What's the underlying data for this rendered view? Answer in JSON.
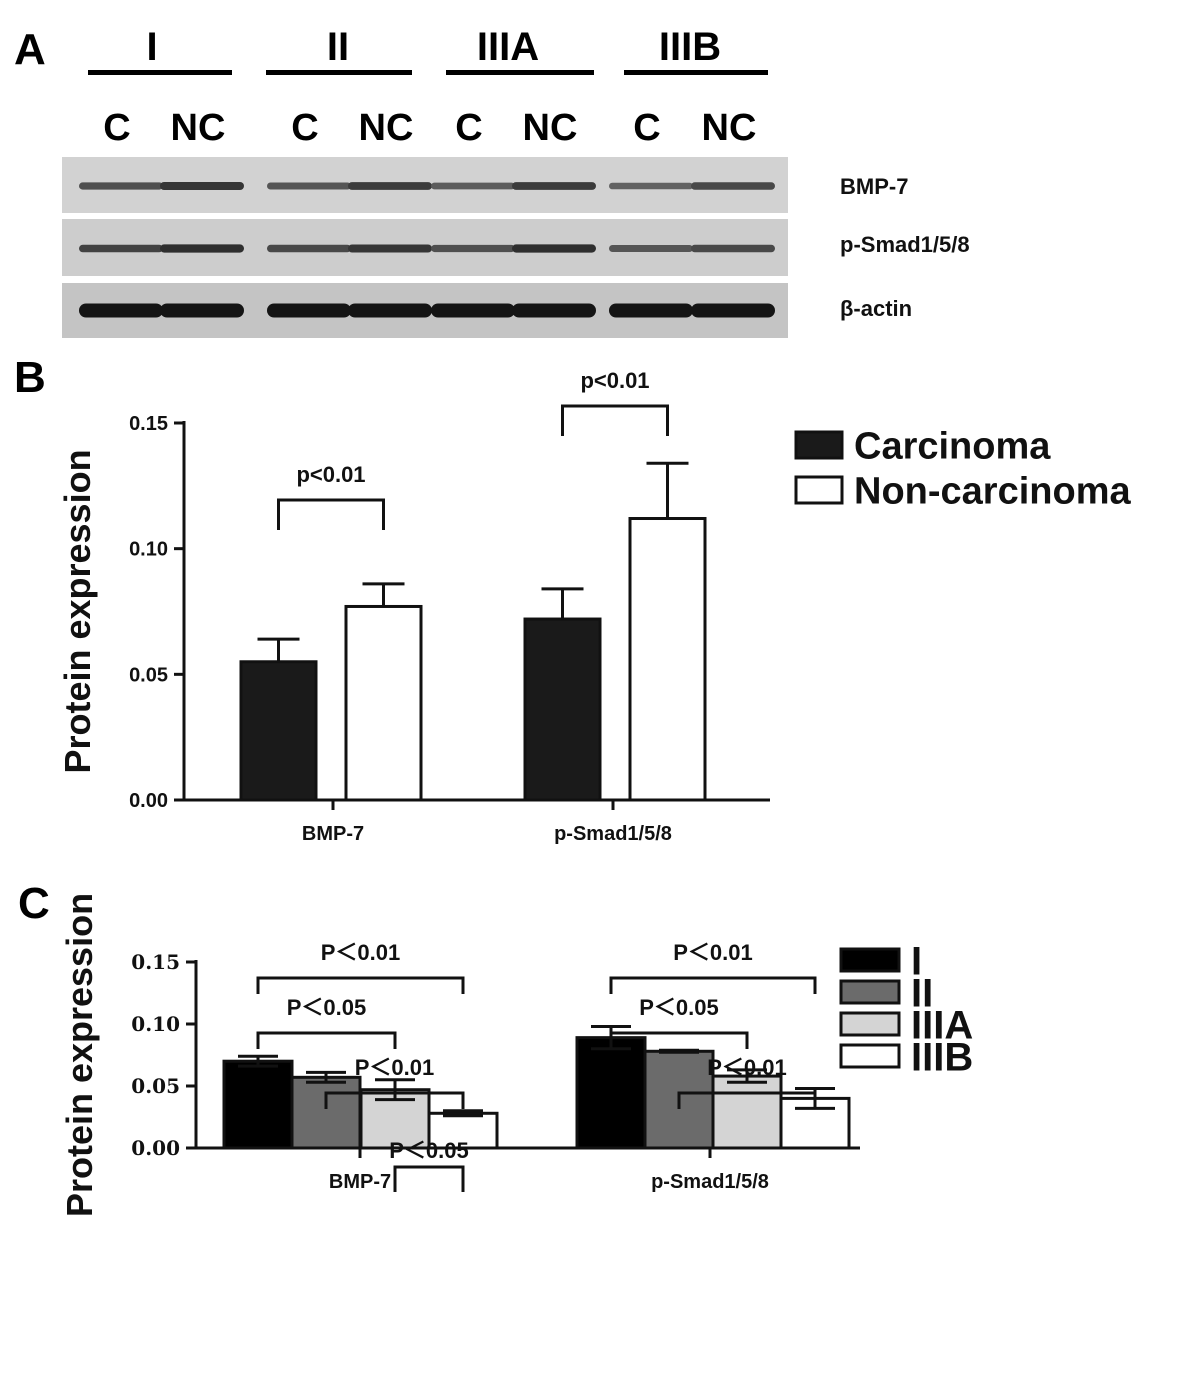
{
  "panels": {
    "a": {
      "letter": "A"
    },
    "b": {
      "letter": "B"
    },
    "c": {
      "letter": "C"
    }
  },
  "blot": {
    "stages": [
      "I",
      "II",
      "IIIA",
      "IIIB"
    ],
    "lanes": [
      "C",
      "NC",
      "C",
      "NC",
      "C",
      "NC",
      "C",
      "NC"
    ],
    "rows": [
      {
        "label": "BMP-7",
        "bg": "#d2d2d2",
        "intensity": [
          0.55,
          0.75,
          0.5,
          0.7,
          0.45,
          0.7,
          0.4,
          0.6
        ]
      },
      {
        "label": "p-Smad1/5/8",
        "bg": "#cdcdcd",
        "intensity": [
          0.65,
          0.8,
          0.6,
          0.75,
          0.55,
          0.8,
          0.5,
          0.6
        ]
      },
      {
        "label": "β-actin",
        "bg": "#c4c4c4",
        "intensity": [
          1,
          1,
          1,
          1,
          1,
          1,
          1,
          1
        ]
      }
    ]
  },
  "chart_data": [
    {
      "type": "bar",
      "title": "",
      "xlabel": "",
      "ylabel": "Protein expression",
      "ylim": [
        0,
        0.15
      ],
      "yticks": [
        "0.00",
        "0.05",
        "0.10",
        "0.15"
      ],
      "categories": [
        "BMP-7",
        "p-Smad1/5/8"
      ],
      "series": [
        {
          "name": "Carcinoma",
          "color": "#1a1a1a",
          "values": [
            0.055,
            0.072
          ],
          "errors": [
            0.009,
            0.012
          ]
        },
        {
          "name": "Non-carcinoma",
          "color": "#ffffff",
          "values": [
            0.077,
            0.112
          ],
          "errors": [
            0.009,
            0.022
          ]
        }
      ],
      "significance": [
        {
          "label": "p<0.01",
          "from": [
            0,
            0
          ],
          "to": [
            0,
            1
          ]
        },
        {
          "label": "p<0.01",
          "from": [
            1,
            0
          ],
          "to": [
            1,
            1
          ]
        }
      ],
      "legend": "right"
    },
    {
      "type": "bar",
      "title": "",
      "xlabel": "",
      "ylabel": "Protein expression",
      "ylim": [
        0,
        0.15
      ],
      "yticks": [
        "0.00",
        "0.05",
        "0.10",
        "0.15"
      ],
      "categories": [
        "BMP-7",
        "p-Smad1/5/8"
      ],
      "series": [
        {
          "name": "I",
          "color": "#000000",
          "values": [
            0.07,
            0.089
          ],
          "errors": [
            0.004,
            0.009
          ]
        },
        {
          "name": "II",
          "color": "#6b6b6b",
          "values": [
            0.057,
            0.078
          ],
          "errors": [
            0.004,
            0.0008
          ]
        },
        {
          "name": "IIIA",
          "color": "#d4d4d4",
          "values": [
            0.047,
            0.058
          ],
          "errors": [
            0.008,
            0.005
          ]
        },
        {
          "name": "IIIB",
          "color": "#ffffff",
          "values": [
            0.028,
            0.04
          ],
          "errors": [
            0.002,
            0.008
          ]
        }
      ],
      "significance": [
        {
          "label": "P＜0.01",
          "from": [
            0,
            0
          ],
          "to": [
            0,
            3
          ]
        },
        {
          "label": "P＜0.05",
          "from": [
            0,
            0
          ],
          "to": [
            0,
            2
          ]
        },
        {
          "label": "P＜0.01",
          "from": [
            0,
            1
          ],
          "to": [
            0,
            3
          ]
        },
        {
          "label": "P＜0.05",
          "from": [
            0,
            2
          ],
          "to": [
            0,
            3
          ]
        },
        {
          "label": "P＜0.01",
          "from": [
            1,
            0
          ],
          "to": [
            1,
            3
          ]
        },
        {
          "label": "P＜0.05",
          "from": [
            1,
            0
          ],
          "to": [
            1,
            2
          ]
        },
        {
          "label": "P＜0.01",
          "from": [
            1,
            1
          ],
          "to": [
            1,
            3
          ]
        }
      ],
      "legend": "right"
    }
  ]
}
